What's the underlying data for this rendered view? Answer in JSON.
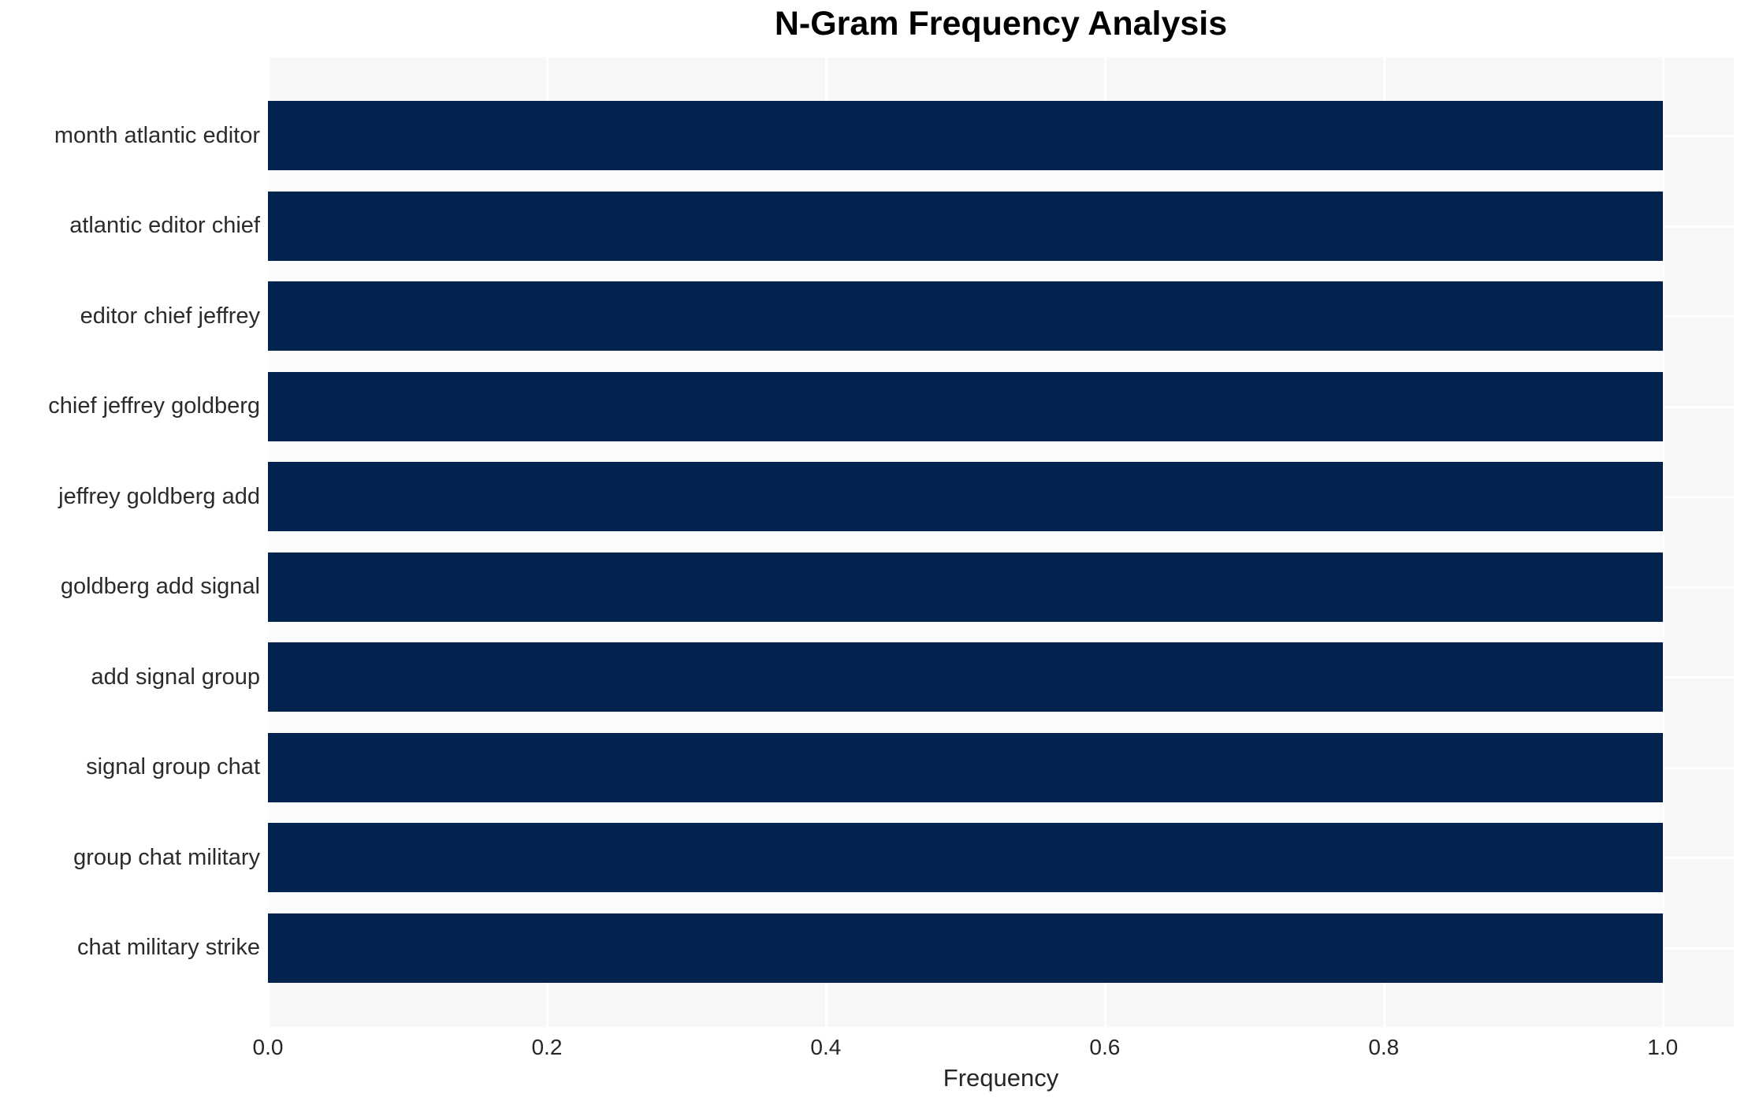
{
  "chart_data": {
    "type": "bar",
    "orientation": "horizontal",
    "title": "N-Gram Frequency Analysis",
    "xlabel": "Frequency",
    "ylabel": "",
    "categories": [
      "month atlantic editor",
      "atlantic editor chief",
      "editor chief jeffrey",
      "chief jeffrey goldberg",
      "jeffrey goldberg add",
      "goldberg add signal",
      "add signal group",
      "signal group chat",
      "group chat military",
      "chat military strike"
    ],
    "values": [
      1.0,
      1.0,
      1.0,
      1.0,
      1.0,
      1.0,
      1.0,
      1.0,
      1.0,
      1.0
    ],
    "x_tick_labels": [
      "0.0",
      "0.2",
      "0.4",
      "0.6",
      "0.8",
      "1.0"
    ],
    "xlim": [
      0,
      1.051
    ],
    "grid": true,
    "legend": false,
    "bar_color": "#02234d",
    "plot_bg_color": "#f7f7f8",
    "grid_color": "#ffffff",
    "text_color": "#262626"
  }
}
